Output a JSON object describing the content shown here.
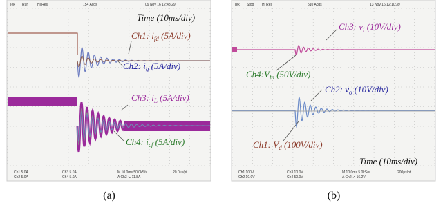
{
  "panels": [
    {
      "header": [
        "Tek",
        "Run",
        "Hi Res",
        "154 Acqs",
        "09 Nov 16 12:48:29"
      ],
      "labels": [
        {
          "pre": "Time (10ms/div)"
        },
        {
          "pre": "Ch1: i",
          "sub": "fd",
          "post": " (5A/div)"
        },
        {
          "pre": "Ch2: i",
          "sub": "g",
          "post": " (5A/div)"
        },
        {
          "pre": "Ch3: i",
          "sub": "L",
          "post": " (5A/div)"
        },
        {
          "pre": "Ch4: i",
          "sub": "cf",
          "post": " (5A/div)"
        }
      ],
      "footer": [
        "Ch1 5.0A",
        "Ch2 5.0A",
        "Ch3 5.0A",
        "Ch4 5.0A",
        "M 10.0ms 50.0kS/s",
        "20.0µs/pt",
        "A Ch3 ↘ 11.8A"
      ],
      "caption": "(a)"
    },
    {
      "header": [
        "Tek",
        "Stop",
        "Hi Res",
        "510 Acqs",
        "13 Nov 16 12:10:39"
      ],
      "labels": [
        {
          "pre": "Ch3: v",
          "sub": "i",
          "post": " (10V/div)"
        },
        {
          "pre": "Ch4:V",
          "sub": "fd",
          "post": " (50V/div)"
        },
        {
          "pre": "Ch2: v",
          "sub": "o",
          "post": " (10V/div)"
        },
        {
          "pre": "Ch1: V",
          "sub": "d",
          "post": " (100V/div)"
        },
        {
          "pre": "Time (10ms/div)"
        }
      ],
      "footer": [
        "Ch1 100V",
        "Ch2 10.0V",
        "Ch3 10.0V",
        "Ch4 50.0V",
        "M 10.0ms 5.0kS/s",
        "200µs/pt",
        "A Ch2 ↗ 16.2V"
      ],
      "caption": "(b)"
    }
  ]
}
